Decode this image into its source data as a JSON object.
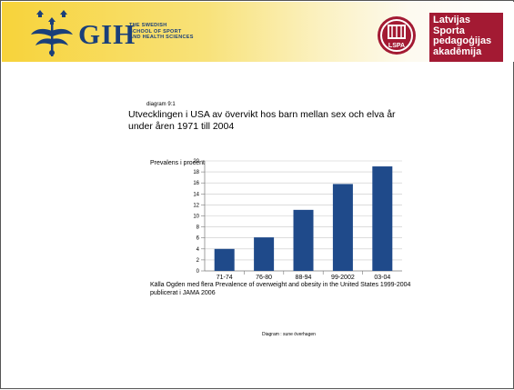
{
  "header": {
    "gih_name": "GIH",
    "gih_sub": [
      "THE SWEDISH",
      "SCHOOL OF SPORT",
      "AND HEALTH SCIENCES"
    ],
    "lspa_lines": [
      "Latvijas",
      "Sporta",
      "pedagoģijas",
      "akadēmija"
    ],
    "lspa_logo_text": "LSPA"
  },
  "slide": {
    "diagram_number": "diagram 9:1",
    "title": "Utvecklingen i USA av övervikt hos barn mellan sex och elva år under åren 1971 till 2004",
    "ylabel": "Prevalens i procent",
    "source": "Källa Ogden med flera Prevalence of overweight and obesity in the United States 1999-2004 publicerat i JAMA 2006",
    "credit": "Diagram : sune överhagen"
  },
  "chart_data": {
    "type": "bar",
    "title": "Utvecklingen i USA av övervikt hos barn mellan sex och elva år under åren 1971 till 2004",
    "xlabel": "",
    "ylabel": "Prevalens i procent",
    "categories": [
      "71-74",
      "76-80",
      "88-94",
      "99-2002",
      "03-04"
    ],
    "values": [
      4,
      6.1,
      11.1,
      15.8,
      19
    ],
    "ylim": [
      0,
      20
    ],
    "yticks": [
      0,
      2,
      4,
      6,
      8,
      10,
      12,
      14,
      16,
      18,
      20
    ],
    "grid": true,
    "legend": "none",
    "bar_color": "#1f4a8a"
  }
}
